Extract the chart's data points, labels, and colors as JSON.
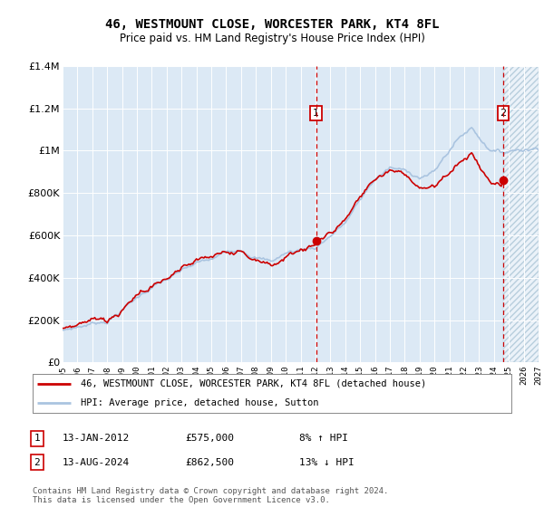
{
  "title": "46, WESTMOUNT CLOSE, WORCESTER PARK, KT4 8FL",
  "subtitle": "Price paid vs. HM Land Registry's House Price Index (HPI)",
  "legend_line1": "46, WESTMOUNT CLOSE, WORCESTER PARK, KT4 8FL (detached house)",
  "legend_line2": "HPI: Average price, detached house, Sutton",
  "annotation1_date": "13-JAN-2012",
  "annotation1_price": "£575,000",
  "annotation1_hpi": "8% ↑ HPI",
  "annotation2_date": "13-AUG-2024",
  "annotation2_price": "£862,500",
  "annotation2_hpi": "13% ↓ HPI",
  "footer": "Contains HM Land Registry data © Crown copyright and database right 2024.\nThis data is licensed under the Open Government Licence v3.0.",
  "sale1_year": 2012.04,
  "sale1_price": 575000,
  "sale2_year": 2024.62,
  "sale2_price": 862500,
  "hpi_color": "#aac4e0",
  "price_color": "#cc0000",
  "background_color": "#dce9f5",
  "ylim_max": 1400000,
  "xlim_start": 1995,
  "xlim_end": 2027
}
